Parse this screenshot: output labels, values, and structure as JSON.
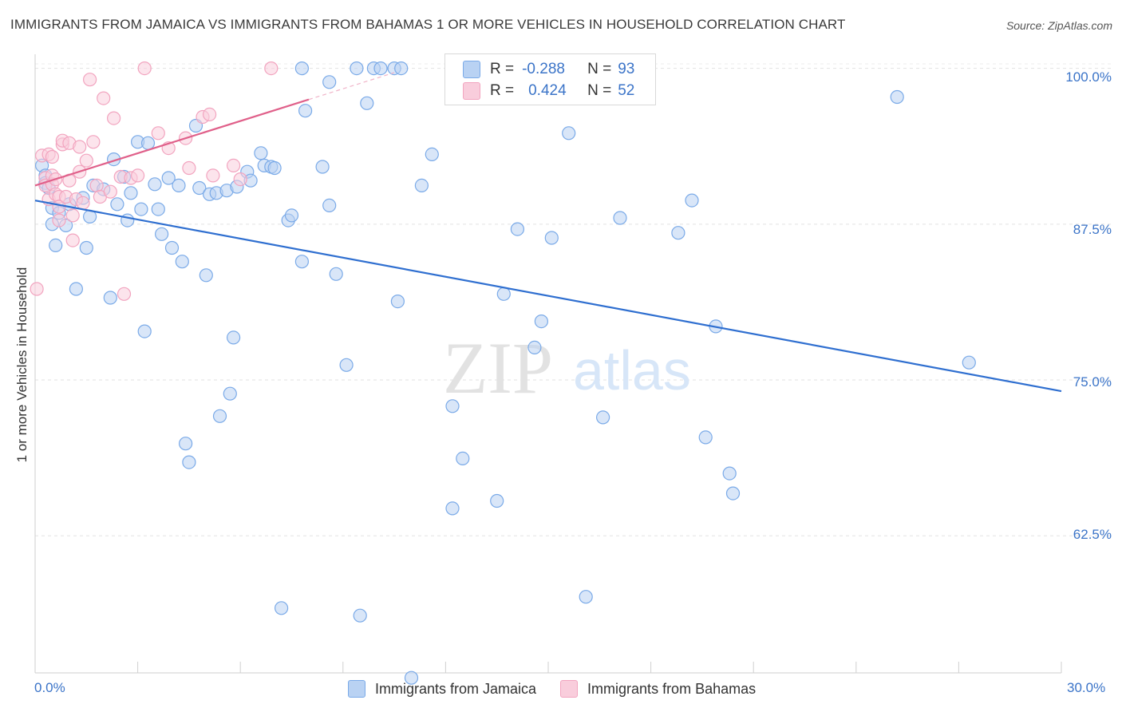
{
  "title": "IMMIGRANTS FROM JAMAICA VS IMMIGRANTS FROM BAHAMAS 1 OR MORE VEHICLES IN HOUSEHOLD CORRELATION CHART",
  "source": "Source: ZipAtlas.com",
  "watermark": {
    "zip": "ZIP",
    "atlas": "atlas"
  },
  "legend": {
    "r_label": "R =",
    "n_label": "N =",
    "jamaica": {
      "r": "-0.288",
      "n": "93"
    },
    "bahamas": {
      "r": "0.424",
      "n": "52"
    }
  },
  "chart_data": {
    "type": "scatter",
    "title": "IMMIGRANTS FROM JAMAICA VS IMMIGRANTS FROM BAHAMAS 1 OR MORE VEHICLES IN HOUSEHOLD CORRELATION CHART",
    "xlabel": "",
    "ylabel": "1 or more Vehicles in Household",
    "xlim": [
      0,
      30
    ],
    "ylim": [
      51.5,
      101
    ],
    "x_tick_labels": [
      "0.0%",
      "30.0%"
    ],
    "y_ticks": [
      62.5,
      75.0,
      87.5,
      100.0
    ],
    "y_tick_labels": [
      "62.5%",
      "75.0%",
      "87.5%",
      "100.0%"
    ],
    "grid": true,
    "legend_position": "bottom",
    "series": [
      {
        "name": "Immigrants from Jamaica",
        "color": "#7aaae8",
        "line_color": "#2f6fd0",
        "trend": {
          "x": [
            0.0,
            30.0
          ],
          "y": [
            89.4,
            74.1
          ]
        },
        "points": [
          [
            0.2,
            92.2
          ],
          [
            0.3,
            91.4
          ],
          [
            0.3,
            90.8
          ],
          [
            0.4,
            90.4
          ],
          [
            0.5,
            88.8
          ],
          [
            0.5,
            87.5
          ],
          [
            0.6,
            85.8
          ],
          [
            0.7,
            88.4
          ],
          [
            0.9,
            87.4
          ],
          [
            1.0,
            89.1
          ],
          [
            1.2,
            82.3
          ],
          [
            1.4,
            89.6
          ],
          [
            1.5,
            85.6
          ],
          [
            1.6,
            88.1
          ],
          [
            1.7,
            90.6
          ],
          [
            2.0,
            90.3
          ],
          [
            2.2,
            81.6
          ],
          [
            2.3,
            92.7
          ],
          [
            2.4,
            89.1
          ],
          [
            2.6,
            91.3
          ],
          [
            2.7,
            87.8
          ],
          [
            2.8,
            90.0
          ],
          [
            3.0,
            94.1
          ],
          [
            3.1,
            88.7
          ],
          [
            3.2,
            78.9
          ],
          [
            3.3,
            94.0
          ],
          [
            3.5,
            90.7
          ],
          [
            3.6,
            88.7
          ],
          [
            3.7,
            86.7
          ],
          [
            3.9,
            91.2
          ],
          [
            4.0,
            85.6
          ],
          [
            4.2,
            90.6
          ],
          [
            4.3,
            84.5
          ],
          [
            4.4,
            69.9
          ],
          [
            4.5,
            68.4
          ],
          [
            4.7,
            95.4
          ],
          [
            4.8,
            90.4
          ],
          [
            5.0,
            83.4
          ],
          [
            5.1,
            89.9
          ],
          [
            5.3,
            90.0
          ],
          [
            5.4,
            72.1
          ],
          [
            5.6,
            90.2
          ],
          [
            5.7,
            73.9
          ],
          [
            5.8,
            78.4
          ],
          [
            5.9,
            90.5
          ],
          [
            6.2,
            91.7
          ],
          [
            6.3,
            91.0
          ],
          [
            6.6,
            93.2
          ],
          [
            6.7,
            92.2
          ],
          [
            6.9,
            92.1
          ],
          [
            7.0,
            92.0
          ],
          [
            7.2,
            56.7
          ],
          [
            7.4,
            87.8
          ],
          [
            7.5,
            88.2
          ],
          [
            7.8,
            100.0
          ],
          [
            7.8,
            84.5
          ],
          [
            7.9,
            96.6
          ],
          [
            8.4,
            92.1
          ],
          [
            8.6,
            98.9
          ],
          [
            8.6,
            89.0
          ],
          [
            8.8,
            83.5
          ],
          [
            9.1,
            76.2
          ],
          [
            9.4,
            100.0
          ],
          [
            9.5,
            56.1
          ],
          [
            9.7,
            97.2
          ],
          [
            9.9,
            100.0
          ],
          [
            10.1,
            100.0
          ],
          [
            10.5,
            100.0
          ],
          [
            10.6,
            81.3
          ],
          [
            10.7,
            100.0
          ],
          [
            11.0,
            51.1
          ],
          [
            11.3,
            90.6
          ],
          [
            11.6,
            93.1
          ],
          [
            12.2,
            72.9
          ],
          [
            12.2,
            64.7
          ],
          [
            12.5,
            68.7
          ],
          [
            13.5,
            65.3
          ],
          [
            13.7,
            81.9
          ],
          [
            14.1,
            87.1
          ],
          [
            14.6,
            77.6
          ],
          [
            14.8,
            79.7
          ],
          [
            15.1,
            86.4
          ],
          [
            15.6,
            94.8
          ],
          [
            16.1,
            57.6
          ],
          [
            16.6,
            72.0
          ],
          [
            17.1,
            88.0
          ],
          [
            18.8,
            86.8
          ],
          [
            19.2,
            89.4
          ],
          [
            19.6,
            70.4
          ],
          [
            19.9,
            79.3
          ],
          [
            20.3,
            67.5
          ],
          [
            20.4,
            65.9
          ],
          [
            25.2,
            97.7
          ],
          [
            27.3,
            76.4
          ]
        ]
      },
      {
        "name": "Immigrants from Bahamas",
        "color": "#f2a4bf",
        "line_color": "#e0608a",
        "trend": {
          "x": [
            0.0,
            8.0
          ],
          "y": [
            90.6,
            97.5
          ]
        },
        "points": [
          [
            0.05,
            82.3
          ],
          [
            0.2,
            93.0
          ],
          [
            0.3,
            91.2
          ],
          [
            0.3,
            90.6
          ],
          [
            0.4,
            89.5
          ],
          [
            0.4,
            93.1
          ],
          [
            0.5,
            92.9
          ],
          [
            0.5,
            91.4
          ],
          [
            0.5,
            90.7
          ],
          [
            0.6,
            91.1
          ],
          [
            0.6,
            89.9
          ],
          [
            0.7,
            89.7
          ],
          [
            0.7,
            88.9
          ],
          [
            0.7,
            87.8
          ],
          [
            0.8,
            93.9
          ],
          [
            0.8,
            94.2
          ],
          [
            0.9,
            89.7
          ],
          [
            1.0,
            94.0
          ],
          [
            1.0,
            91.0
          ],
          [
            1.1,
            88.2
          ],
          [
            1.1,
            86.2
          ],
          [
            1.2,
            89.5
          ],
          [
            1.3,
            93.7
          ],
          [
            1.3,
            91.7
          ],
          [
            1.4,
            89.2
          ],
          [
            1.5,
            92.6
          ],
          [
            1.6,
            99.1
          ],
          [
            1.7,
            94.1
          ],
          [
            1.8,
            90.6
          ],
          [
            1.9,
            89.7
          ],
          [
            2.0,
            97.6
          ],
          [
            2.2,
            90.1
          ],
          [
            2.3,
            96.0
          ],
          [
            2.5,
            91.3
          ],
          [
            2.6,
            81.9
          ],
          [
            2.8,
            91.2
          ],
          [
            3.0,
            91.4
          ],
          [
            3.2,
            100.0
          ],
          [
            3.6,
            94.8
          ],
          [
            3.9,
            93.6
          ],
          [
            4.4,
            94.4
          ],
          [
            4.5,
            92.0
          ],
          [
            4.9,
            96.1
          ],
          [
            5.1,
            96.3
          ],
          [
            5.2,
            91.4
          ],
          [
            5.8,
            92.2
          ],
          [
            6.0,
            91.1
          ],
          [
            6.9,
            100.0
          ]
        ]
      }
    ]
  },
  "bottom_legend": {
    "jamaica_label": "Immigrants from Jamaica",
    "bahamas_label": "Immigrants from Bahamas"
  },
  "colors": {
    "blue_fill": "#b9d2f3",
    "blue_stroke": "#7aaae8",
    "pink_fill": "#f9cddc",
    "pink_stroke": "#f2a4bf",
    "accent_text": "#3b74c8"
  }
}
